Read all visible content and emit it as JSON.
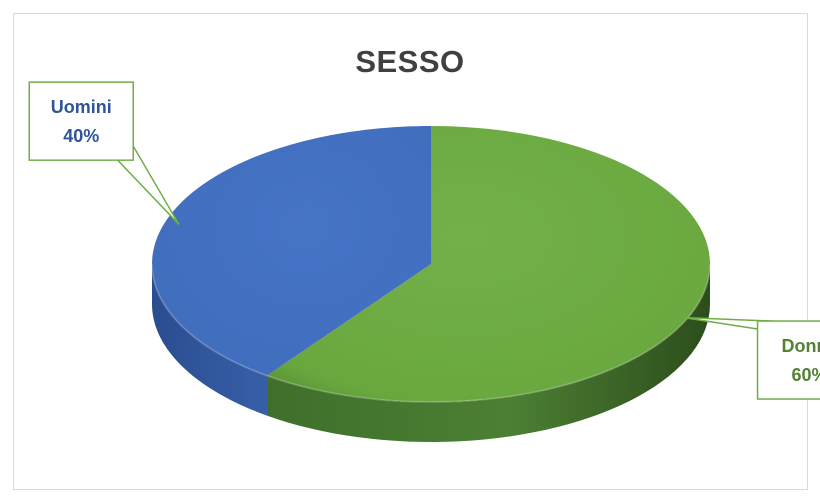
{
  "chart_data": {
    "type": "pie",
    "title": "SESSO",
    "categories": [
      "Donne",
      "Uomini"
    ],
    "values": [
      60,
      40
    ],
    "colors": [
      "#70ad47",
      "#4472c4"
    ],
    "label_colors": [
      "#548235",
      "#2f5597"
    ],
    "data_labels": [
      {
        "category": "Donne",
        "percent": "60%"
      },
      {
        "category": "Uomini",
        "percent": "40%"
      }
    ],
    "legend": "none",
    "style": "3d"
  }
}
